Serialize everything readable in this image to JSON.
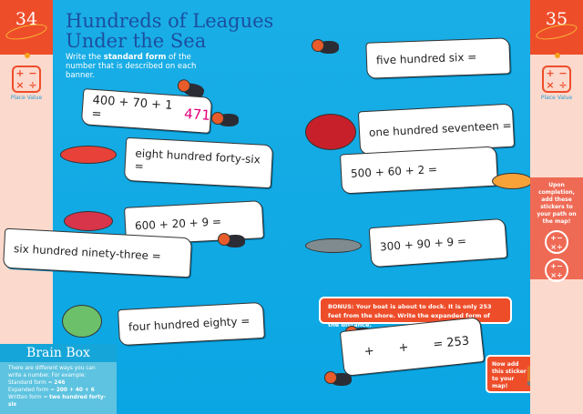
{
  "left_page": {
    "number": "34",
    "topic_label": "Place Value",
    "calc_symbols": [
      "+",
      "−",
      "×",
      "÷"
    ]
  },
  "right_page": {
    "number": "35",
    "topic_label": "Place Value"
  },
  "title_line1": "Hundreds of Leagues",
  "title_line2": "Under the Sea",
  "instructions": {
    "pre": "Write the ",
    "bold": "standard form",
    "post": " of the number that is described on each banner."
  },
  "banners": [
    {
      "text": "400 + 70 + 1 =",
      "answer": "471"
    },
    {
      "text": "eight hundred forty-six ="
    },
    {
      "text": "600 + 20 + 9 ="
    },
    {
      "text": "six hundred ninety-three ="
    },
    {
      "text": "four hundred eighty ="
    },
    {
      "text": "five hundred six ="
    },
    {
      "text": "one hundred seventeen ="
    },
    {
      "text": "500 + 60 + 2 ="
    },
    {
      "text": "300 + 90 + 9 ="
    }
  ],
  "bonus": {
    "text": "BONUS: Your boat is about to dock. It is only 253 feet from the shore. Write the expanded form of the distance.",
    "plus1": "+",
    "plus2": "+",
    "result": "= 253"
  },
  "sticker_note": "Now add this sticker to your map!",
  "completion_note": "Upon completion, add these stickers to your path on the map!",
  "brain_box": {
    "title": "Brain Box",
    "intro": "There are different ways you can write a number. For example:",
    "standard_label": "Standard form = ",
    "standard_value": "246",
    "expanded_label": "Expanded form = ",
    "expanded_value": "200 + 40 + 6",
    "written_label": "Written form = ",
    "written_value": "two hundred forty-six"
  },
  "colors": {
    "ocean": "#0fb0ea",
    "accent": "#ee4d2a",
    "title": "#1c4fa0",
    "answer": "#e4007c"
  }
}
